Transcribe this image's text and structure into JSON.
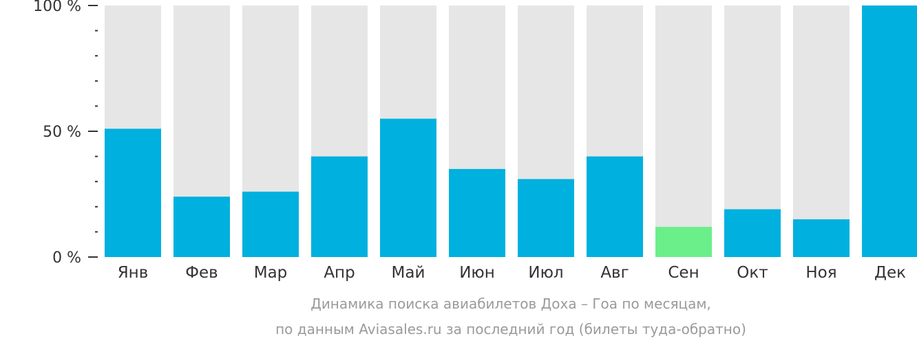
{
  "chart_data": {
    "type": "bar",
    "categories": [
      "Янв",
      "Фев",
      "Мар",
      "Апр",
      "Май",
      "Июн",
      "Июл",
      "Авг",
      "Сен",
      "Окт",
      "Ноя",
      "Дек"
    ],
    "values": [
      51,
      24,
      26,
      40,
      55,
      35,
      31,
      40,
      12,
      19,
      15,
      100
    ],
    "ylim": [
      0,
      100
    ],
    "yticks": [
      {
        "value": 0,
        "label": "0 %"
      },
      {
        "value": 50,
        "label": "50 %"
      },
      {
        "value": 100,
        "label": "100 %"
      }
    ],
    "minor_tick_step": 10,
    "background_bar_value": 100,
    "colors": {
      "bar": "#00b0de",
      "highlight_bar": "#6bef8a",
      "background_bar": "#e6e6e6",
      "axis": "#333333"
    },
    "highlight_category": "Сен",
    "caption_line1": "Динамика поиска авиабилетов Доха – Гоа по месяцам,",
    "caption_line2": "по данным Aviasales.ru за последний год (билеты туда-обратно)"
  }
}
